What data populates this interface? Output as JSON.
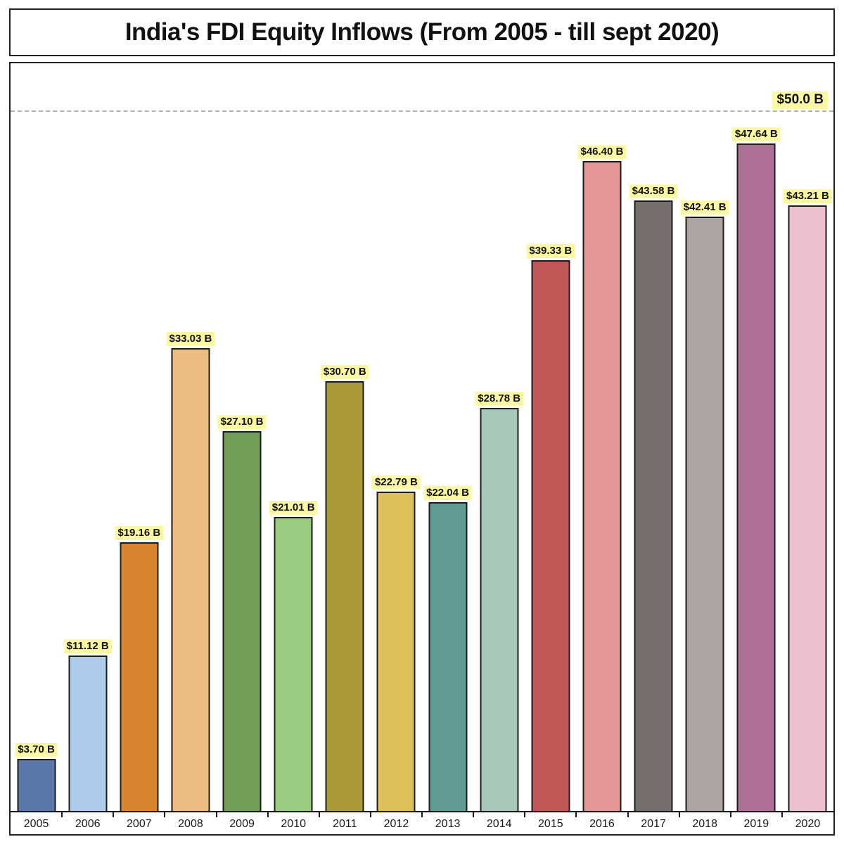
{
  "title": "India's FDI Equity Inflows (From 2005 - till sept 2020)",
  "chart_data": {
    "type": "bar",
    "title": "India's FDI Equity Inflows (From 2005 - till sept 2020)",
    "xlabel": "",
    "ylabel": "",
    "categories": [
      "2005",
      "2006",
      "2007",
      "2008",
      "2009",
      "2010",
      "2011",
      "2012",
      "2013",
      "2014",
      "2015",
      "2016",
      "2017",
      "2018",
      "2019",
      "2020"
    ],
    "values": [
      3.7,
      11.12,
      19.16,
      33.03,
      27.1,
      21.01,
      30.7,
      22.79,
      22.04,
      28.78,
      39.33,
      46.4,
      43.58,
      42.41,
      47.64,
      43.21
    ],
    "labels": [
      "$3.70 B",
      "$11.12 B",
      "$19.16 B",
      "$33.03 B",
      "$27.10 B",
      "$21.01 B",
      "$30.70 B",
      "$22.79 B",
      "$22.04 B",
      "$28.78 B",
      "$39.33 B",
      "$46.40 B",
      "$43.58 B",
      "$42.41 B",
      "$47.64 B",
      "$43.21 B"
    ],
    "bar_colors": [
      "#5b77a9",
      "#aecce9",
      "#d9842e",
      "#eebd82",
      "#729f55",
      "#9bcb80",
      "#ab9a38",
      "#dcc15b",
      "#5f9a93",
      "#a8c8bb",
      "#c25758",
      "#e49697",
      "#746e6d",
      "#aba4a2",
      "#b06f97",
      "#edc0d0"
    ],
    "bar_border_color": "#1c1c1c",
    "label_highlight_color": "#fbf8a3",
    "ylim": [
      0,
      52.5
    ],
    "grid": false,
    "legend": false,
    "reference_line": {
      "value": 50.0,
      "label": "$50.0 B",
      "style": "dashed",
      "color": "#b4b4b4"
    }
  }
}
